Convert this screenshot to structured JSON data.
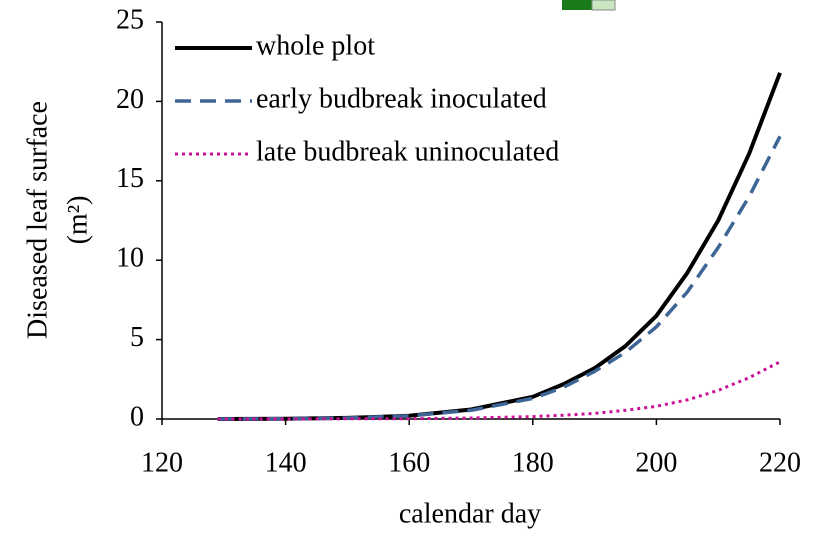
{
  "chart_data": {
    "type": "line",
    "xlabel": "calendar day",
    "ylabel": [
      "Diseased leaf surface",
      "(m²)"
    ],
    "x": [
      129,
      140,
      150,
      160,
      170,
      180,
      185,
      190,
      195,
      200,
      205,
      210,
      215,
      220
    ],
    "series": [
      {
        "name": "whole plot",
        "color": "#000000",
        "style": "solid",
        "values": [
          0,
          0.02,
          0.07,
          0.2,
          0.6,
          1.4,
          2.2,
          3.2,
          4.6,
          6.5,
          9.2,
          12.5,
          16.7,
          21.8
        ]
      },
      {
        "name": "early budbreak inoculated",
        "color": "#3d6596",
        "style": "dashed",
        "values": [
          0,
          0.02,
          0.06,
          0.2,
          0.55,
          1.3,
          2.0,
          3.0,
          4.2,
          5.8,
          8.0,
          10.8,
          14.0,
          17.8
        ]
      },
      {
        "name": "late budbreak uninoculated",
        "color": "#cc1199",
        "style": "dotted",
        "values": [
          0,
          0,
          0.01,
          0.02,
          0.06,
          0.15,
          0.24,
          0.35,
          0.55,
          0.8,
          1.2,
          1.8,
          2.6,
          3.6
        ]
      }
    ],
    "xlim": [
      120,
      220
    ],
    "xticks": [
      120,
      140,
      160,
      180,
      200,
      220
    ],
    "ylim": [
      0,
      25
    ],
    "yticks": [
      0,
      5,
      10,
      15,
      20,
      25
    ],
    "grid": false,
    "legend": "upper left"
  }
}
